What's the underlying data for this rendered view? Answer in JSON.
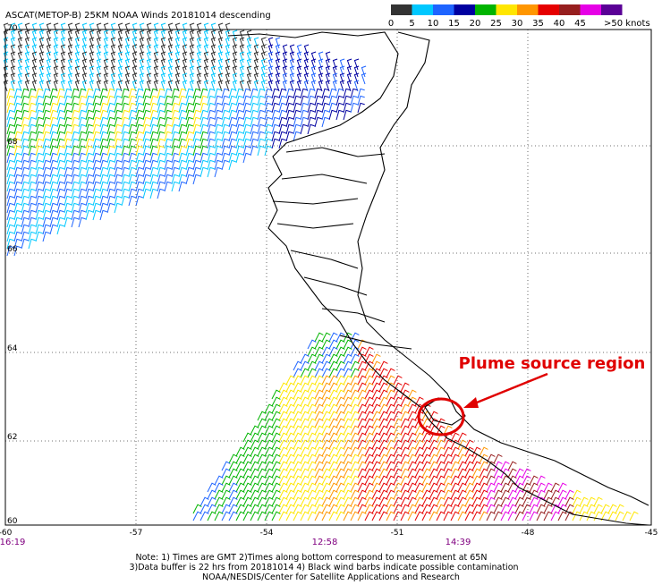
{
  "title": "ASCAT(METOP-B) 25KM NOAA Winds 20181014 descending",
  "legend": {
    "labels": [
      "0",
      "5",
      "10",
      "15",
      "20",
      "25",
      "30",
      "35",
      "40",
      "45",
      ">50 knots"
    ],
    "colors": [
      "#333333",
      "#00c8ff",
      "#1e64ff",
      "#0000a0",
      "#00b400",
      "#ffe600",
      "#ff9600",
      "#e60000",
      "#961e1e",
      "#e600e6",
      "#5a0096"
    ]
  },
  "axes": {
    "lat_labels": [
      "70",
      "68",
      "66",
      "64",
      "62",
      "60"
    ],
    "lon_labels": [
      "-60",
      "-57",
      "-54",
      "-51",
      "-48",
      "-45"
    ]
  },
  "times": [
    "16:19",
    "12:58",
    "14:39"
  ],
  "notes": [
    "Note: 1) Times are GMT 2)Times along bottom correspond to measurement at 65N",
    "3)Data buffer is 22 hrs from 20181014 4) Black wind barbs indicate possible contamination",
    "NOAA/NESDIS/Center for Satellite Applications and Research"
  ],
  "annotation": "Plume source region"
}
